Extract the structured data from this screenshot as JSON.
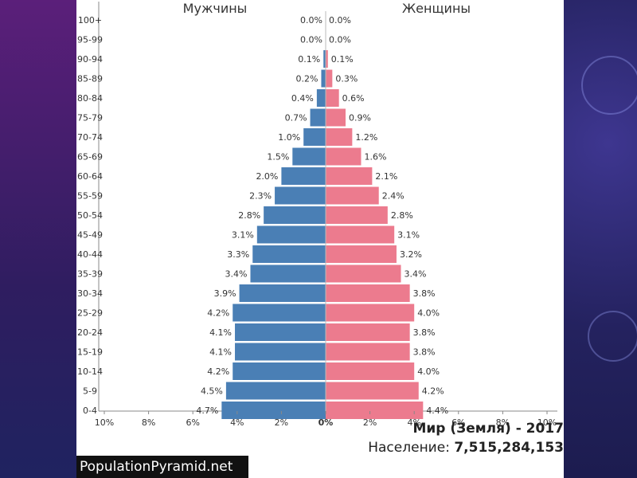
{
  "chart_data": {
    "type": "bar",
    "orientation": "horizontal-pyramid",
    "left_title": "Мужчины",
    "right_title": "Женщины",
    "categories": [
      "100+",
      "95-99",
      "90-94",
      "85-89",
      "80-84",
      "75-79",
      "70-74",
      "65-69",
      "60-64",
      "55-59",
      "50-54",
      "45-49",
      "40-44",
      "35-39",
      "30-34",
      "25-29",
      "20-24",
      "15-19",
      "10-14",
      "5-9",
      "0-4"
    ],
    "series": [
      {
        "name": "Мужчины",
        "values": [
          0.0,
          0.0,
          0.1,
          0.2,
          0.4,
          0.7,
          1.0,
          1.5,
          2.0,
          2.3,
          2.8,
          3.1,
          3.3,
          3.4,
          3.9,
          4.2,
          4.1,
          4.1,
          4.2,
          4.5,
          4.7
        ]
      },
      {
        "name": "Женщины",
        "values": [
          0.0,
          0.0,
          0.1,
          0.3,
          0.6,
          0.9,
          1.2,
          1.6,
          2.1,
          2.4,
          2.8,
          3.1,
          3.2,
          3.4,
          3.8,
          4.0,
          3.8,
          3.8,
          4.0,
          4.2,
          4.4
        ]
      }
    ],
    "x_ticks": [
      "10%",
      "8%",
      "6%",
      "4%",
      "2%",
      "0%",
      "2%",
      "4%",
      "6%",
      "8%",
      "10%"
    ],
    "xlim": [
      -10,
      10
    ],
    "colors": {
      "male": "#4a7fb5",
      "female": "#ec7b8e"
    }
  },
  "region_title": "Мир (Земля) - 2017",
  "population_label": "Население:",
  "population_value": "7,515,284,153",
  "source_caption": "PopulationPyramid.net"
}
